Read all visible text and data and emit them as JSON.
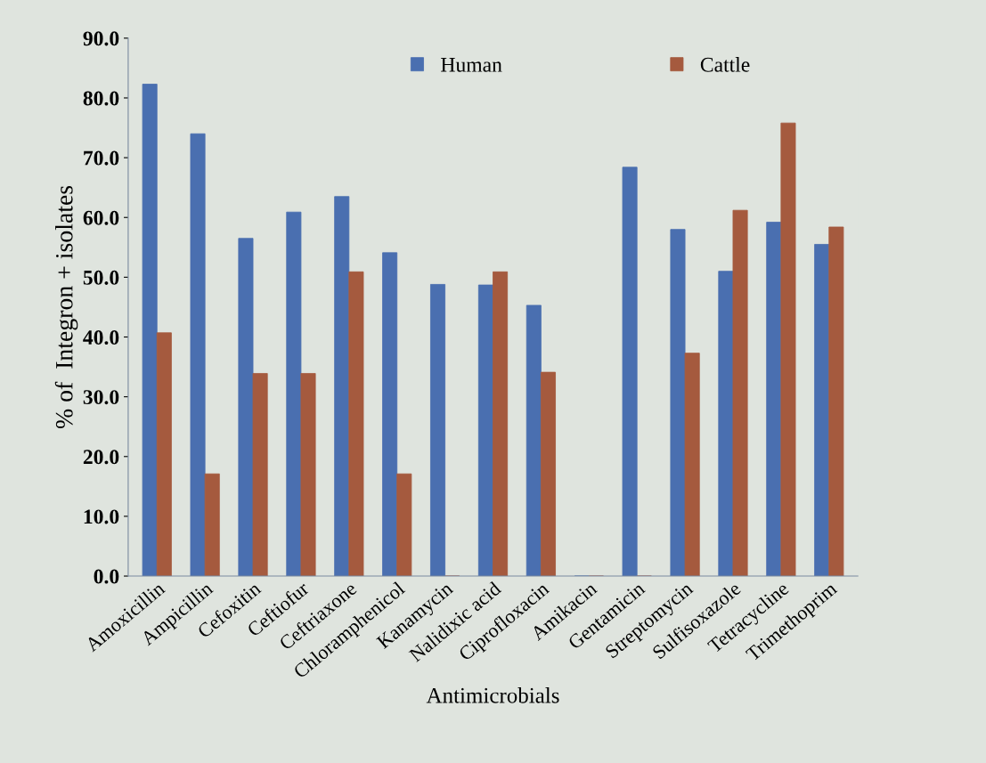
{
  "chart_data": {
    "type": "bar",
    "xlabel": "Antimicrobials",
    "ylabel": "% of  Integron + isolates",
    "categories": [
      "Amoxicillin",
      "Ampicillin",
      "Cefoxitin",
      "Ceftiofur",
      "Ceftriaxone",
      "Chloramphenicol",
      "Kanamycin",
      "Nalidixic acid",
      "Ciprofloxacin",
      "Amikacin",
      "Gentamicin",
      "Streptomycin",
      "Sulfisoxazole",
      "Tetracycline",
      "Trimethoprim"
    ],
    "series": [
      {
        "name": "Human",
        "color": "#4a6fb0",
        "values": [
          82.3,
          74.0,
          56.5,
          60.9,
          63.5,
          54.1,
          48.8,
          48.7,
          45.3,
          0,
          68.4,
          58.0,
          51.0,
          59.2,
          55.5
        ]
      },
      {
        "name": "Cattle",
        "color": "#a55a3e",
        "values": [
          40.7,
          17.1,
          33.9,
          33.9,
          50.9,
          17.1,
          0,
          50.9,
          34.1,
          0,
          0,
          37.3,
          61.2,
          75.8,
          58.4
        ]
      }
    ],
    "ylim": [
      0,
      90
    ],
    "yticks": [
      {
        "value": 0,
        "label": "0.0"
      },
      {
        "value": 10,
        "label": "10.0"
      },
      {
        "value": 20,
        "label": "20.0"
      },
      {
        "value": 30,
        "label": "30.0"
      },
      {
        "value": 40,
        "label": "40.0"
      },
      {
        "value": 50,
        "label": "50.0"
      },
      {
        "value": 60,
        "label": "60.0"
      },
      {
        "value": 70,
        "label": "70.0"
      },
      {
        "value": 80,
        "label": "80.0"
      },
      {
        "value": 90,
        "label": "90.0"
      }
    ],
    "grid": false,
    "legend": "top"
  }
}
